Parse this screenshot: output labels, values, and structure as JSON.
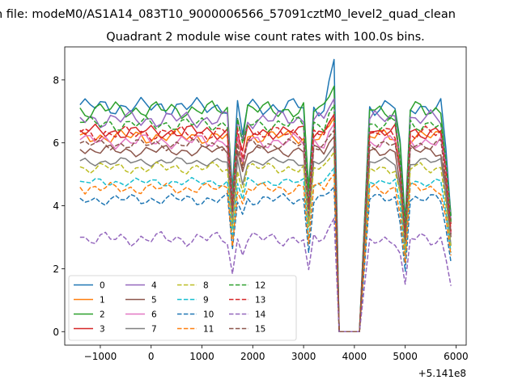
{
  "figure": {
    "suptitle": "n file: modeM0/AS1A14_083T10_9000006566_57091cztM0_level2_quad_clean",
    "offset_text": "+5.141e8"
  },
  "chart_data": {
    "type": "line",
    "title": "Quadrant 2 module wise count rates with 100.0s bins.",
    "xlabel": "",
    "ylabel": "",
    "x_offset": 514100000,
    "xlim": [
      -1700,
      6200
    ],
    "ylim": [
      -0.43,
      9.05
    ],
    "x_ticks": [
      -1000,
      0,
      1000,
      2000,
      3000,
      4000,
      5000,
      6000
    ],
    "x_tick_labels": [
      "−1000",
      "0",
      "1000",
      "2000",
      "3000",
      "4000",
      "5000",
      "6000"
    ],
    "y_ticks": [
      0,
      2,
      4,
      6,
      8
    ],
    "y_tick_labels": [
      "0",
      "2",
      "4",
      "6",
      "8"
    ],
    "grid": false,
    "legend_position": "lower-left",
    "legend_columns": 4,
    "gaps": [
      {
        "x": [
          1600,
          1700,
          1800
        ],
        "factors": [
          0.62,
          1.0,
          0.88
        ]
      },
      {
        "x": [
          3100,
          3200,
          3300
        ],
        "factors": [
          0.62,
          1.0,
          1.0
        ]
      },
      {
        "x": [
          4900,
          5000,
          5100
        ],
        "factors": [
          0.83,
          0.48,
          1.0
        ]
      },
      {
        "x": [
          5800,
          5900
        ],
        "factors": [
          0.8,
          0.52
        ]
      }
    ],
    "profile": {
      "x_start": -1400,
      "x_step": 100,
      "x_end": 5900,
      "flat_until": 3400,
      "dip": {
        "x": [
          3700,
          3800,
          3900,
          4000,
          4100,
          4200,
          4300
        ],
        "values": [
          0,
          0,
          0,
          0,
          0,
          0.5,
          1
        ]
      },
      "rise": {
        "x": [
          3500,
          3600
        ],
        "extra": [
          0.6,
          1.1
        ]
      }
    },
    "series": [
      {
        "name": "0",
        "color": "#1f77b4",
        "dash": "solid",
        "level": 7.15,
        "amp": 0.3,
        "peak": 8.65
      },
      {
        "name": "1",
        "color": "#ff7f0e",
        "dash": "solid",
        "level": 6.2,
        "amp": 0.25,
        "peak": 6.8
      },
      {
        "name": "2",
        "color": "#2ca02c",
        "dash": "solid",
        "level": 7.05,
        "amp": 0.3,
        "peak": 7.8
      },
      {
        "name": "3",
        "color": "#d62728",
        "dash": "solid",
        "level": 6.35,
        "amp": 0.25,
        "peak": 6.9
      },
      {
        "name": "4",
        "color": "#9467bd",
        "dash": "solid",
        "level": 6.75,
        "amp": 0.3,
        "peak": 7.4
      },
      {
        "name": "5",
        "color": "#8c564b",
        "dash": "solid",
        "level": 5.75,
        "amp": 0.2,
        "peak": 6.2
      },
      {
        "name": "6",
        "color": "#e377c2",
        "dash": "solid",
        "level": 6.05,
        "amp": 0.25,
        "peak": 6.6
      },
      {
        "name": "7",
        "color": "#7f7f7f",
        "dash": "solid",
        "level": 5.4,
        "amp": 0.15,
        "peak": 5.9
      },
      {
        "name": "8",
        "color": "#bcbd22",
        "dash": "dashed",
        "level": 5.2,
        "amp": 0.2,
        "peak": 5.7
      },
      {
        "name": "9",
        "color": "#17becf",
        "dash": "dashed",
        "level": 4.75,
        "amp": 0.15,
        "peak": 5.2
      },
      {
        "name": "10",
        "color": "#1f77b4",
        "dash": "dashed",
        "level": 4.2,
        "amp": 0.2,
        "peak": 4.6
      },
      {
        "name": "11",
        "color": "#ff7f0e",
        "dash": "dashed",
        "level": 4.55,
        "amp": 0.2,
        "peak": 5.0
      },
      {
        "name": "12",
        "color": "#2ca02c",
        "dash": "dashed",
        "level": 6.6,
        "amp": 0.25,
        "peak": 7.2
      },
      {
        "name": "13",
        "color": "#d62728",
        "dash": "dashed",
        "level": 6.3,
        "amp": 0.25,
        "peak": 6.9
      },
      {
        "name": "14",
        "color": "#9467bd",
        "dash": "dashed",
        "level": 2.95,
        "amp": 0.25,
        "peak": 3.6
      },
      {
        "name": "15",
        "color": "#8c564b",
        "dash": "dashed",
        "level": 5.95,
        "amp": 0.2,
        "peak": 6.4
      }
    ]
  }
}
